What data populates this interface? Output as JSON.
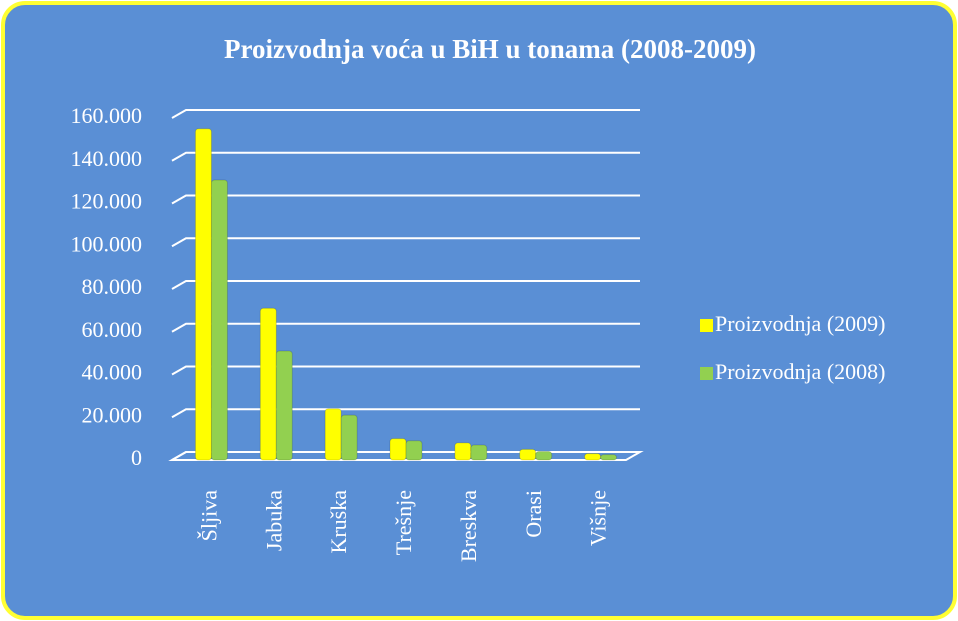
{
  "chart_data": {
    "type": "bar",
    "title": "Proizvodnja voća u BiH u tonama (2008-2009)",
    "categories": [
      "Šljiva",
      "Jabuka",
      "Kruška",
      "Trešnje",
      "Breskva",
      "Orasi",
      "Višnje"
    ],
    "series": [
      {
        "name": "Proizvodnja (2009)",
        "color": "#ffff00",
        "values": [
          155000,
          71000,
          24000,
          10000,
          8000,
          5000,
          3000
        ]
      },
      {
        "name": "Proizvodnja (2008)",
        "color": "#92d050",
        "values": [
          131000,
          51000,
          21000,
          9000,
          7000,
          4000,
          2500
        ]
      }
    ],
    "ylim": [
      0,
      160000
    ],
    "yticks": [
      0,
      {
        "value": 20000,
        "label": "20.000"
      },
      {
        "value": 40000,
        "label": "40.000"
      },
      {
        "value": 60000,
        "label": "60.000"
      },
      {
        "value": 80000,
        "label": "80.000"
      },
      {
        "value": 100000,
        "label": "100.000"
      },
      {
        "value": 120000,
        "label": "120.000"
      },
      {
        "value": 140000,
        "label": "140.000"
      },
      {
        "value": 160000,
        "label": "160.000"
      }
    ],
    "grid": true,
    "legend": "right"
  }
}
